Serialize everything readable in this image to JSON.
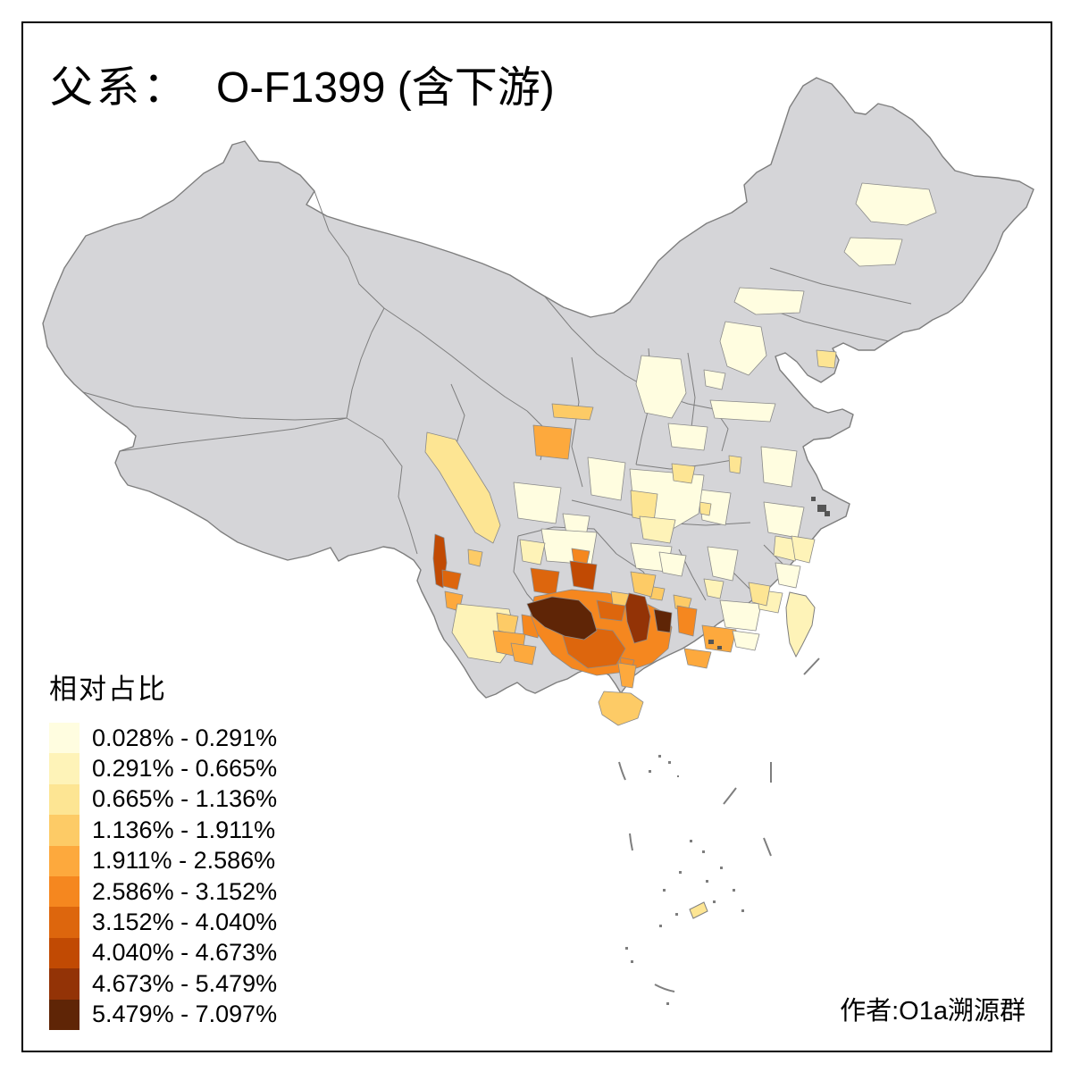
{
  "title": {
    "prefix": "父系：",
    "main": "O-F1399 (含下游)",
    "full": "父系： O-F1399 (含下游)"
  },
  "legend": {
    "title": "相对占比",
    "classes": [
      {
        "range": "0.028% - 0.291%",
        "color": "#FFFDE0"
      },
      {
        "range": "0.291% - 0.665%",
        "color": "#FEF3B8"
      },
      {
        "range": "0.665% - 1.136%",
        "color": "#FDE593"
      },
      {
        "range": "1.136% - 1.911%",
        "color": "#FDCB66"
      },
      {
        "range": "1.911% - 2.586%",
        "color": "#FDA93D"
      },
      {
        "range": "2.586% - 3.152%",
        "color": "#F5871F"
      },
      {
        "range": "3.152% - 4.040%",
        "color": "#DD660D"
      },
      {
        "range": "4.040% - 4.673%",
        "color": "#C14A03"
      },
      {
        "range": "4.673% - 5.479%",
        "color": "#933306"
      },
      {
        "range": "5.479% - 7.097%",
        "color": "#5F2506"
      }
    ]
  },
  "author": "作者:O1a溯源群",
  "map": {
    "no_data_color": "#D5D5D8",
    "boundary_color": "#7E7E7E",
    "sea_color": "#FFFFFF",
    "frame_color": "#000000",
    "city_cluster_color": "#555555"
  },
  "chart_data": {
    "type": "choropleth-map",
    "region": "China, prefecture-level divisions",
    "title": "父系： O-F1399 (含下游)",
    "legend_title": "相对占比",
    "unit": "%",
    "class_breaks": [
      0.028,
      0.291,
      0.665,
      1.136,
      1.911,
      2.586,
      3.152,
      4.04,
      4.673,
      5.479,
      7.097
    ],
    "palette": [
      "#FFFDE0",
      "#FEF3B8",
      "#FDE593",
      "#FDCB66",
      "#FDA93D",
      "#F5871F",
      "#DD660D",
      "#C14A03",
      "#933306",
      "#5F2506"
    ],
    "no_data": "gray (most of west/north China: Xinjiang, Tibet, Qinghai, Inner Mongolia, much of NE China)",
    "pattern_summary": [
      "Maximum class 5.479%-7.097% in west Guangxi / SE Yunnan border and central-east Guangxi prefectures",
      "High classes (2.586%-5.479%) across Guangxi, south Guizhou, SE Yunnan, west Guangdong and a sliver on the west Yunnan (Nujiang) border",
      "Moderate classes (0.665%-2.586%) in Sichuan (Ganzi-Liangshan belt), north Sichuan/south Gansu patch, Hainan, Leizhou, coastal Guangdong/Fujian spots",
      "Lowest classes (0.028%-0.665%) scattered pale patches across central, east and northeast China; Taiwan pale",
      "Dashed nine-dash line and small islets in the South China Sea, one small colored islet (Paracels)"
    ]
  }
}
